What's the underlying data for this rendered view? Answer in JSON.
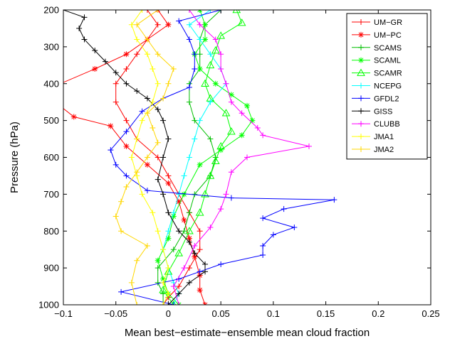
{
  "chart_data": {
    "type": "line",
    "title": "",
    "xlabel": "Mean best−estimate−ensemble mean cloud fraction",
    "ylabel": "Pressure (hPa)",
    "xlim": [
      -0.1,
      0.25
    ],
    "ylim": [
      200,
      1000
    ],
    "y_reversed": true,
    "grid": false,
    "legend_position": "top-right",
    "x_ticks": [
      -0.1,
      -0.05,
      0,
      0.05,
      0.1,
      0.15,
      0.2,
      0.25
    ],
    "x_tick_labels": [
      "−0.1",
      "−0.05",
      "0",
      "0.05",
      "0.1",
      "0.15",
      "0.2",
      "0.25"
    ],
    "y_ticks": [
      200,
      300,
      400,
      500,
      600,
      700,
      800,
      900,
      1000
    ],
    "y_tick_labels": [
      "200",
      "300",
      "400",
      "500",
      "600",
      "700",
      "800",
      "900",
      "1000"
    ],
    "series": [
      {
        "name": "UM−GR",
        "color": "#ff0000",
        "marker": "plus",
        "x": [
          -0.02,
          -0.01,
          -0.02,
          -0.03,
          -0.04,
          -0.05,
          -0.05,
          -0.04,
          -0.03,
          -0.01,
          0.0,
          0.01,
          0.02,
          0.03,
          0.03,
          0.02,
          0.01,
          0.0,
          -0.005
        ],
        "y": [
          200,
          240,
          280,
          320,
          360,
          400,
          450,
          500,
          550,
          600,
          650,
          700,
          750,
          800,
          850,
          900,
          950,
          980,
          1000
        ]
      },
      {
        "name": "UM−PC",
        "color": "#ff0000",
        "marker": "star",
        "x": [
          -0.01,
          0.0,
          -0.02,
          -0.04,
          -0.07,
          -0.115,
          -0.11,
          -0.09,
          -0.055,
          -0.04,
          -0.02,
          0.0,
          0.01,
          0.015,
          0.02,
          0.025,
          0.03,
          0.03,
          0.035
        ],
        "y": [
          200,
          240,
          280,
          320,
          360,
          415,
          445,
          490,
          515,
          570,
          620,
          670,
          720,
          770,
          820,
          870,
          920,
          960,
          1000
        ]
      },
      {
        "name": "SCAMS",
        "color": "#00bf00",
        "marker": "plus",
        "x": [
          0.05,
          0.035,
          0.03,
          0.03,
          0.03,
          0.02,
          0.02,
          0.025,
          0.04,
          0.045,
          0.04,
          0.025,
          0.02,
          0.015,
          0.005,
          -0.01,
          -0.01,
          -0.005,
          -0.005
        ],
        "y": [
          200,
          240,
          280,
          320,
          360,
          400,
          450,
          500,
          550,
          600,
          650,
          700,
          750,
          800,
          850,
          900,
          940,
          970,
          1000
        ]
      },
      {
        "name": "SCAML",
        "color": "#00ff00",
        "marker": "star",
        "x": [
          0.03,
          0.035,
          0.035,
          0.025,
          0.03,
          0.045,
          0.06,
          0.075,
          0.08,
          0.07,
          0.05,
          0.03,
          0.015,
          0.005,
          0.0,
          -0.01,
          -0.005,
          0.0,
          0.01
        ],
        "y": [
          200,
          240,
          280,
          320,
          360,
          400,
          430,
          460,
          500,
          540,
          580,
          620,
          700,
          760,
          820,
          880,
          930,
          970,
          1000
        ]
      },
      {
        "name": "SCAMR",
        "color": "#00ff00",
        "marker": "triangle",
        "x": [
          0.065,
          0.07,
          0.05,
          0.045,
          0.04,
          0.035,
          0.04,
          0.055,
          0.06,
          0.05,
          0.045,
          0.04,
          0.035,
          0.03,
          0.02,
          0.01,
          0.0,
          -0.005,
          0.005
        ],
        "y": [
          200,
          235,
          270,
          310,
          350,
          400,
          440,
          480,
          530,
          570,
          610,
          650,
          700,
          750,
          800,
          860,
          910,
          960,
          1000
        ]
      },
      {
        "name": "NCEPG",
        "color": "#00ffff",
        "marker": "plus",
        "x": [
          0.04,
          0.02,
          0.03,
          0.04,
          0.05,
          0.055,
          0.04,
          0.03,
          0.025,
          0.02,
          0.015,
          0.01,
          0.005,
          0.0,
          -0.005,
          0.0,
          0.005,
          0.01,
          0.005
        ],
        "y": [
          200,
          240,
          280,
          320,
          360,
          400,
          450,
          500,
          550,
          600,
          650,
          700,
          750,
          800,
          850,
          900,
          940,
          970,
          1000
        ]
      },
      {
        "name": "GFDL2",
        "color": "#0000ff",
        "marker": "plus",
        "x": [
          0.05,
          0.01,
          0.02,
          0.025,
          0.025,
          0.02,
          -0.005,
          -0.025,
          -0.04,
          -0.055,
          -0.05,
          -0.04,
          -0.02,
          0.06,
          0.158,
          0.11,
          0.09,
          0.12,
          0.1,
          0.09,
          0.09,
          0.05,
          0.03,
          0.01,
          -0.045,
          0.005
        ],
        "y": [
          200,
          230,
          280,
          320,
          360,
          410,
          440,
          475,
          530,
          580,
          620,
          650,
          690,
          710,
          715,
          740,
          765,
          790,
          810,
          840,
          865,
          890,
          910,
          930,
          965,
          1000
        ]
      },
      {
        "name": "GISS",
        "color": "#000000",
        "marker": "plus",
        "x": [
          -0.1,
          -0.08,
          -0.085,
          -0.08,
          -0.07,
          -0.06,
          -0.05,
          -0.04,
          -0.03,
          -0.02,
          -0.01,
          -0.005,
          0.0,
          -0.005,
          -0.01,
          -0.005,
          0.0,
          0.01,
          0.02,
          0.025,
          0.035,
          0.035,
          0.02,
          0.01,
          0.0
        ],
        "y": [
          200,
          220,
          250,
          280,
          310,
          340,
          370,
          400,
          420,
          440,
          470,
          500,
          550,
          600,
          660,
          700,
          750,
          800,
          830,
          860,
          890,
          910,
          940,
          970,
          1000
        ]
      },
      {
        "name": "CLUBB",
        "color": "#ff00ff",
        "marker": "plus",
        "x": [
          0.02,
          0.03,
          0.045,
          0.05,
          0.05,
          0.055,
          0.06,
          0.07,
          0.085,
          0.09,
          0.134,
          0.075,
          0.06,
          0.055,
          0.05,
          0.04,
          0.025,
          0.015,
          0.005,
          0.01
        ],
        "y": [
          200,
          240,
          280,
          320,
          360,
          400,
          450,
          480,
          520,
          540,
          570,
          600,
          640,
          700,
          740,
          790,
          840,
          900,
          950,
          1000
        ]
      },
      {
        "name": "JMA1",
        "color": "#ffff00",
        "marker": "plus",
        "x": [
          -0.025,
          -0.035,
          -0.03,
          -0.02,
          -0.015,
          -0.01,
          -0.015,
          -0.025,
          -0.03,
          -0.035,
          -0.03,
          -0.025,
          -0.015,
          -0.01,
          -0.005,
          0.0,
          -0.005,
          0.0,
          -0.005
        ],
        "y": [
          200,
          240,
          280,
          320,
          360,
          400,
          450,
          500,
          550,
          600,
          650,
          700,
          750,
          800,
          850,
          900,
          940,
          970,
          1000
        ]
      },
      {
        "name": "JMA2",
        "color": "#ffd700",
        "marker": "plus",
        "x": [
          -0.01,
          -0.03,
          -0.02,
          -0.01,
          0.005,
          0.0,
          -0.005,
          -0.02,
          -0.015,
          -0.01,
          -0.02,
          -0.03,
          -0.04,
          -0.045,
          -0.05,
          -0.045,
          -0.02,
          -0.03,
          -0.035,
          -0.03
        ],
        "y": [
          200,
          240,
          280,
          320,
          360,
          400,
          440,
          480,
          520,
          560,
          600,
          640,
          680,
          720,
          760,
          800,
          840,
          880,
          940,
          1000
        ]
      }
    ]
  }
}
